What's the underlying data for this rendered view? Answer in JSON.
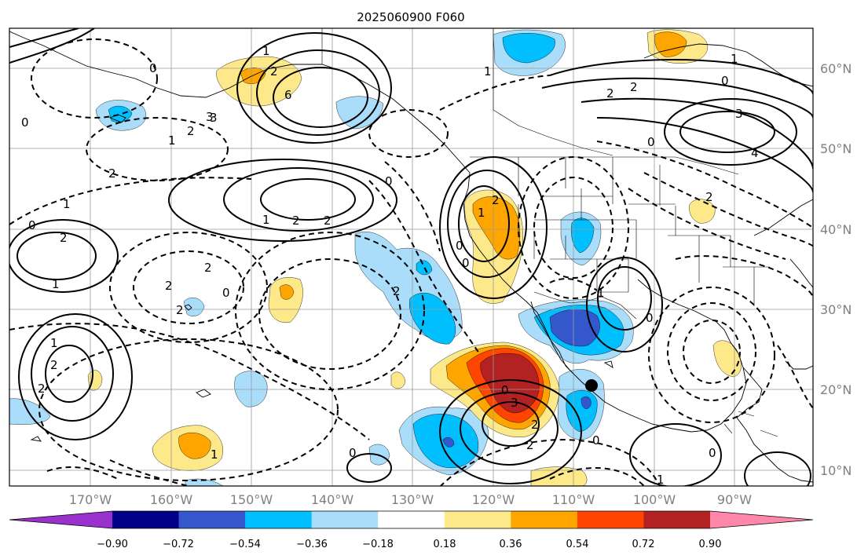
{
  "title": "2025060900 F060",
  "map": {
    "lon_labels": [
      "170°W",
      "160°W",
      "150°W",
      "140°W",
      "130°W",
      "120°W",
      "110°W",
      "100°W",
      "90°W"
    ],
    "lat_labels": [
      "60°N",
      "50°N",
      "40°N",
      "30°N",
      "20°N",
      "10°N"
    ],
    "lon_range": [
      -180,
      -80
    ],
    "lat_range": [
      8,
      65
    ],
    "marker": {
      "lon": -107.2,
      "lat": 20.4,
      "label": ""
    },
    "contour_labels": [
      "3",
      "1",
      "2",
      "6",
      "0",
      "1",
      "3",
      "2",
      "0",
      "1",
      "2",
      "2",
      "1",
      "0",
      "2",
      "2",
      "1",
      "2",
      "2",
      "0",
      "2",
      "1",
      "2",
      "2",
      "1",
      "0",
      "2",
      "0",
      "0",
      "0",
      "1",
      "2",
      "2",
      "0",
      "3",
      "2",
      "2",
      "3",
      "4",
      "0",
      "1",
      "0",
      "2",
      "1",
      "2",
      "0",
      "1",
      "0",
      "0",
      "1"
    ],
    "shading_colors": {
      "light_blue": "#aaddfa",
      "blue": "#00bfff",
      "royal": "#3557cc",
      "yellow": "#fde88a",
      "orange": "#ffa500",
      "red_orange": "#ff4500",
      "dark_red": "#b22222"
    }
  },
  "colorbar": {
    "colors": [
      "#9932cc",
      "#00008b",
      "#3557cc",
      "#00bfff",
      "#aaddfa",
      "#ffffff",
      "#fde88a",
      "#ffa500",
      "#ff4500",
      "#b22222",
      "#ff88aa"
    ],
    "tick_labels": [
      "−0.90",
      "−0.72",
      "−0.54",
      "−0.36",
      "−0.18",
      "0.18",
      "0.36",
      "0.54",
      "0.72",
      "0.90"
    ]
  }
}
